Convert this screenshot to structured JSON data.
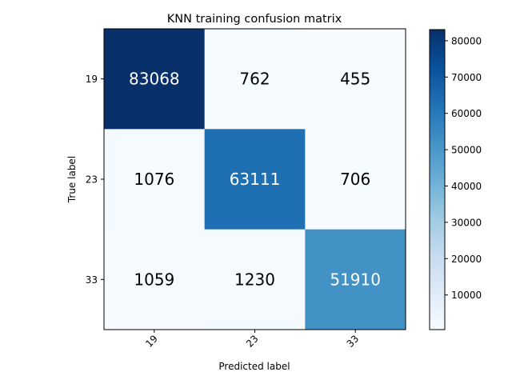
{
  "chart_data": {
    "type": "heatmap",
    "title": "KNN training confusion matrix",
    "xlabel": "Predicted label",
    "ylabel": "True label",
    "x_categories": [
      "19",
      "23",
      "33"
    ],
    "y_categories": [
      "19",
      "23",
      "33"
    ],
    "values": [
      [
        83068,
        762,
        455
      ],
      [
        1076,
        63111,
        706
      ],
      [
        1059,
        1230,
        51910
      ]
    ],
    "colormap": "Blues",
    "color_range": [
      455,
      83068
    ],
    "colorbar_ticks": [
      "10000",
      "20000",
      "30000",
      "40000",
      "50000",
      "60000",
      "70000",
      "80000"
    ],
    "text_colors": {
      "dark_cell": "#ffffff",
      "light_cell": "#000000"
    },
    "grid": false
  }
}
